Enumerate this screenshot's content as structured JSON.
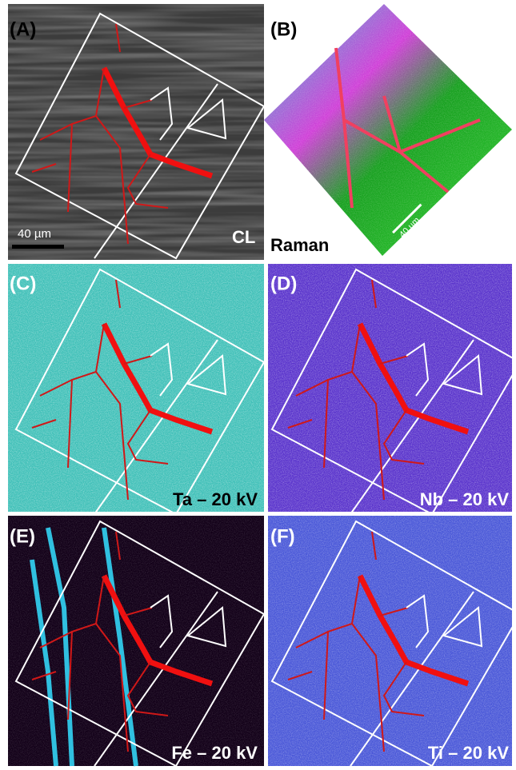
{
  "panels": [
    {
      "label": "(A)",
      "caption": "CL",
      "scale_bar": "40 µm"
    },
    {
      "label": "(B)",
      "caption": "Raman",
      "scale_bar": "40 µm"
    },
    {
      "label": "(C)",
      "caption": "Ta – 20 kV"
    },
    {
      "label": "(D)",
      "caption": "Nb – 20 kV"
    },
    {
      "label": "(E)",
      "caption": "Fe – 20 kV"
    },
    {
      "label": "(F)",
      "caption": "Ti – 20 kV"
    }
  ]
}
